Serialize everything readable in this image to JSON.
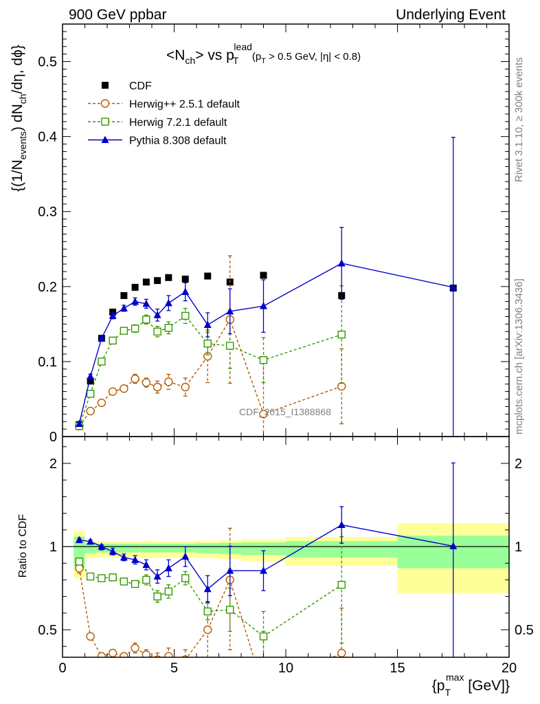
{
  "header": {
    "left": "900 GeV ppbar",
    "right": "Underlying Event"
  },
  "title": {
    "prefix": "<N",
    "prefix_sub": "ch",
    "mid": "> vs p",
    "mid_sub": "T",
    "mid_sup": "lead",
    "cut1": "(p",
    "cut1_sub": "T",
    "cut2": " > 0.5 GeV, |η| < 0.8)"
  },
  "side_labels": {
    "rivet": "Rivet 3.1.10, ≥ 300k events",
    "mcplots": "mcplots.cern.ch [arXiv:1306.3436]"
  },
  "watermark": "CDF_2015_I1388868",
  "ylabel_main": {
    "a": "{(1/N",
    "a_sub": "events",
    "b": ") dN",
    "b_sub": "ch",
    "c": "/dη, dϕ}"
  },
  "ylabel_ratio": "Ratio to CDF",
  "xlabel": {
    "a": "{p",
    "a_sub": "T",
    "a_sup": "max",
    "b": " [GeV]}"
  },
  "legend": [
    {
      "label": "CDF",
      "color": "#000000",
      "marker": "filled-square"
    },
    {
      "label": "Herwig++ 2.5.1 default",
      "color": "#b35900",
      "marker": "open-circle"
    },
    {
      "label": "Herwig 7.2.1 default",
      "color": "#339900",
      "marker": "open-square"
    },
    {
      "label": "Pythia 8.308 default",
      "color": "#0000cc",
      "marker": "filled-triangle"
    }
  ],
  "chart_data": {
    "type": "scatter",
    "xlim": [
      0,
      20
    ],
    "main_ylim": [
      0,
      0.55
    ],
    "ratio_ylim": [
      0.35,
      2.35
    ],
    "x_ticks": [
      "0",
      "5",
      "10",
      "15",
      "20"
    ],
    "main_y_ticks": [
      "0",
      "0.1",
      "0.2",
      "0.3",
      "0.4",
      "0.5"
    ],
    "ratio_y_ticks": [
      "0.5",
      "1",
      "2"
    ],
    "series": [
      {
        "name": "CDF",
        "color": "#000000",
        "marker": "filled-square",
        "line": "none",
        "x": [
          0.75,
          1.25,
          1.75,
          2.25,
          2.75,
          3.25,
          3.75,
          4.25,
          4.75,
          5.5,
          6.5,
          7.5,
          9.0,
          12.5,
          17.5
        ],
        "y": [
          0.016,
          0.074,
          0.131,
          0.166,
          0.188,
          0.199,
          0.206,
          0.208,
          0.212,
          0.21,
          0.214,
          0.206,
          0.215,
          0.188,
          0.198
        ],
        "yerr": [
          0.002,
          0.002,
          0.002,
          0.002,
          0.002,
          0.002,
          0.002,
          0.002,
          0.002,
          0.002,
          0.002,
          0.003,
          0.003,
          0.004,
          0.004
        ]
      },
      {
        "name": "Herwig++ 2.5.1 default",
        "color": "#b35900",
        "marker": "open-circle",
        "line": "dashed",
        "x": [
          0.75,
          1.25,
          1.75,
          2.25,
          2.75,
          3.25,
          3.75,
          4.25,
          4.75,
          5.5,
          6.5,
          7.5,
          9.0,
          12.5
        ],
        "y": [
          0.014,
          0.034,
          0.045,
          0.06,
          0.064,
          0.077,
          0.072,
          0.066,
          0.073,
          0.066,
          0.107,
          0.156,
          0.03,
          0.067
        ],
        "yerr": [
          0.002,
          0.003,
          0.003,
          0.004,
          0.004,
          0.006,
          0.006,
          0.008,
          0.01,
          0.012,
          0.035,
          0.085,
          0.075,
          0.05
        ],
        "ratio": [
          0.87,
          0.46,
          0.34,
          0.36,
          0.34,
          0.39,
          0.35,
          0.32,
          0.34,
          0.32,
          0.5,
          0.8,
          0.14,
          0.36
        ],
        "ratio_err": [
          0.03,
          0.02,
          0.02,
          0.02,
          0.02,
          0.03,
          0.03,
          0.04,
          0.05,
          0.06,
          0.17,
          0.42,
          0.35,
          0.27
        ]
      },
      {
        "name": "Herwig 7.2.1 default",
        "color": "#339900",
        "marker": "open-square",
        "line": "dashed",
        "x": [
          0.75,
          1.25,
          1.75,
          2.25,
          2.75,
          3.25,
          3.75,
          4.25,
          4.75,
          5.5,
          6.5,
          7.5,
          9.0,
          12.5
        ],
        "y": [
          0.014,
          0.057,
          0.1,
          0.128,
          0.141,
          0.144,
          0.156,
          0.14,
          0.145,
          0.161,
          0.124,
          0.121,
          0.102,
          0.136
        ],
        "yerr": [
          0.002,
          0.003,
          0.003,
          0.004,
          0.004,
          0.005,
          0.006,
          0.007,
          0.008,
          0.01,
          0.015,
          0.03,
          0.03,
          0.065
        ],
        "ratio": [
          0.91,
          0.82,
          0.81,
          0.815,
          0.79,
          0.775,
          0.8,
          0.7,
          0.73,
          0.81,
          0.61,
          0.62,
          0.46,
          0.77
        ],
        "ratio_err": [
          0.02,
          0.02,
          0.02,
          0.02,
          0.02,
          0.02,
          0.03,
          0.035,
          0.04,
          0.04,
          0.05,
          0.13,
          0.15,
          0.35
        ]
      },
      {
        "name": "Pythia 8.308 default",
        "color": "#0000cc",
        "marker": "filled-triangle",
        "line": "solid",
        "x": [
          0.75,
          1.25,
          1.75,
          2.25,
          2.75,
          3.25,
          3.75,
          4.25,
          4.75,
          5.5,
          6.5,
          7.5,
          9.0,
          12.5,
          17.5
        ],
        "y": [
          0.017,
          0.08,
          0.131,
          0.161,
          0.171,
          0.18,
          0.177,
          0.162,
          0.178,
          0.193,
          0.149,
          0.167,
          0.174,
          0.231,
          0.199
        ],
        "yerr": [
          0.002,
          0.003,
          0.003,
          0.004,
          0.004,
          0.005,
          0.006,
          0.008,
          0.01,
          0.012,
          0.016,
          0.03,
          0.035,
          0.048,
          0.2
        ],
        "ratio": [
          1.08,
          1.06,
          1.0,
          0.97,
          0.935,
          0.92,
          0.89,
          0.82,
          0.87,
          0.94,
          0.745,
          0.855,
          0.855,
          1.26,
          1.005
        ],
        "ratio_err": [
          0.02,
          0.02,
          0.02,
          0.02,
          0.02,
          0.025,
          0.03,
          0.04,
          0.05,
          0.06,
          0.08,
          0.15,
          0.12,
          0.22,
          1.0
        ]
      }
    ],
    "cdf_bands": {
      "bins": [
        [
          0.5,
          1.0
        ],
        [
          1.0,
          1.5
        ],
        [
          1.5,
          2.0
        ],
        [
          2.0,
          2.5
        ],
        [
          2.5,
          3.0
        ],
        [
          3.0,
          3.5
        ],
        [
          3.5,
          4.0
        ],
        [
          4.0,
          4.5
        ],
        [
          4.5,
          5.0
        ],
        [
          5.0,
          6.0
        ],
        [
          6.0,
          7.0
        ],
        [
          7.0,
          8.0
        ],
        [
          8.0,
          10.0
        ],
        [
          10.0,
          15.0
        ],
        [
          15.0,
          20.0
        ]
      ],
      "stat_lo": [
        0.88,
        0.96,
        0.965,
        0.965,
        0.965,
        0.965,
        0.965,
        0.965,
        0.965,
        0.965,
        0.96,
        0.955,
        0.95,
        0.935,
        0.87
      ],
      "stat_hi": [
        1.12,
        1.04,
        1.035,
        1.035,
        1.035,
        1.035,
        1.035,
        1.035,
        1.035,
        1.035,
        1.04,
        1.045,
        1.05,
        1.065,
        1.13
      ],
      "total_lo": [
        0.81,
        0.93,
        0.935,
        0.935,
        0.935,
        0.935,
        0.93,
        0.935,
        0.935,
        0.935,
        0.93,
        0.925,
        0.91,
        0.885,
        0.72
      ],
      "total_hi": [
        1.19,
        1.07,
        1.065,
        1.065,
        1.065,
        1.065,
        1.07,
        1.065,
        1.065,
        1.065,
        1.07,
        1.075,
        1.09,
        1.115,
        1.28
      ]
    }
  }
}
